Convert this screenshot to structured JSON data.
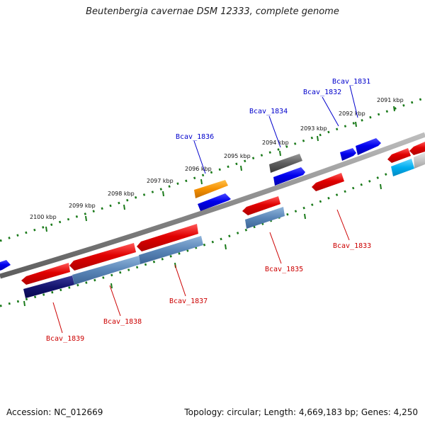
{
  "title": "Beutenbergia cavernae DSM 12333, complete genome",
  "footer": {
    "accession": "Accession: NC_012669",
    "summary": "Topology: circular; Length: 4,669,183 bp; Genes: 4,250"
  },
  "colors": {
    "forward_label": "#0000cc",
    "reverse_label": "#cc0000",
    "tick": "#1a7a1a",
    "backbone": "#7a7a7a"
  },
  "ruler_labels": [
    "2100 kbp",
    "2099 kbp",
    "2098 kbp",
    "2097 kbp",
    "2096 kbp",
    "2095 kbp",
    "2094 kbp",
    "2093 kbp",
    "2092 kbp",
    "2091 kbp"
  ],
  "gene_labels": {
    "forward": [
      "Bcav_1836",
      "Bcav_1834",
      "Bcav_1832",
      "Bcav_1831"
    ],
    "reverse": [
      "Bcav_1839",
      "Bcav_1838",
      "Bcav_1837",
      "Bcav_1835",
      "Bcav_1833"
    ]
  }
}
